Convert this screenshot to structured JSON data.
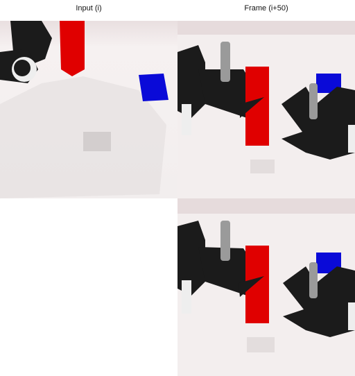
{
  "columns": [
    {
      "label": "Input (i)"
    },
    {
      "label": "Frame (i+50)"
    }
  ],
  "panels": [
    {
      "id": "input-frame",
      "content": "robot arm grippers with red block and blue block"
    },
    {
      "id": "future-frame",
      "content": "robot arm grippers with red block and blue block"
    },
    {
      "id": "empty-slot",
      "content": ""
    },
    {
      "id": "predicted-frame",
      "content": "robot arm grippers with red block and blue block"
    }
  ],
  "colors": {
    "red_block": "#e00000",
    "blue_block": "#0a0ad8",
    "table": "#f3eeee",
    "gripper": "#1b1b1b"
  }
}
